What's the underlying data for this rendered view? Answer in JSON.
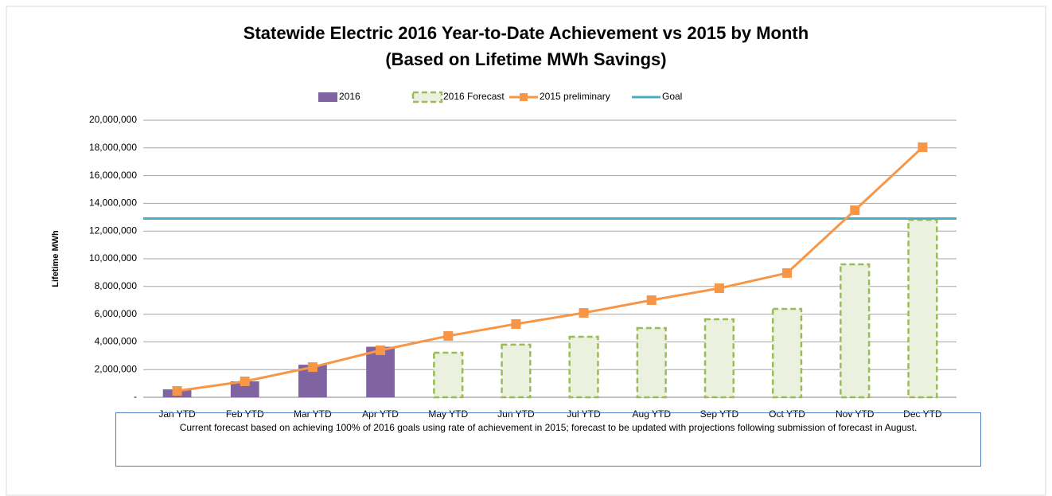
{
  "chart_data": {
    "type": "bar",
    "title": "Statewide Electric 2016 Year-to-Date Achievement vs 2015 by Month",
    "subtitle": "(Based on Lifetime MWh Savings)",
    "y_label": "Lifetime MWh",
    "categories": [
      "Jan YTD",
      "Feb YTD",
      "Mar YTD",
      "Apr YTD",
      "May YTD",
      "Jun YTD",
      "Jul YTD",
      "Aug YTD",
      "Sep YTD",
      "Oct YTD",
      "Nov YTD",
      "Dec YTD"
    ],
    "series": [
      {
        "name": "2016",
        "kind": "bar",
        "color": "#8064a2",
        "values": [
          570000,
          1150000,
          2350000,
          3650000,
          null,
          null,
          null,
          null,
          null,
          null,
          null,
          null
        ]
      },
      {
        "name": "2016 Forecast",
        "kind": "dashed-bar",
        "color": "#9bbb59",
        "fill": "#ebf1de",
        "values": [
          null,
          null,
          null,
          null,
          3220000,
          3800000,
          4370000,
          5000000,
          5630000,
          6380000,
          9600000,
          12800000
        ]
      },
      {
        "name": "2015 preliminary",
        "kind": "line",
        "color": "#f79646",
        "values": [
          460000,
          1150000,
          2180000,
          3390000,
          4430000,
          5290000,
          6090000,
          7010000,
          7870000,
          8970000,
          13500000,
          18050000
        ]
      },
      {
        "name": "Goal",
        "kind": "hline",
        "color": "#4bacc6",
        "value": 12900000
      }
    ],
    "ylim": [
      0,
      20000000
    ],
    "yticks": [
      {
        "value": 0,
        "label": "-"
      },
      {
        "value": 2000000,
        "label": "2,000,000"
      },
      {
        "value": 4000000,
        "label": "4,000,000"
      },
      {
        "value": 6000000,
        "label": "6,000,000"
      },
      {
        "value": 8000000,
        "label": "8,000,000"
      },
      {
        "value": 10000000,
        "label": "10,000,000"
      },
      {
        "value": 12000000,
        "label": "12,000,000"
      },
      {
        "value": 14000000,
        "label": "14,000,000"
      },
      {
        "value": 16000000,
        "label": "16,000,000"
      },
      {
        "value": 18000000,
        "label": "18,000,000"
      },
      {
        "value": 20000000,
        "label": "20,000,000"
      }
    ],
    "grid": true,
    "legend": "top",
    "note": "Current forecast based on achieving 100% of 2016 goals using rate of achievement in 2015; forecast to be updated with projections following submission of forecast in August."
  }
}
